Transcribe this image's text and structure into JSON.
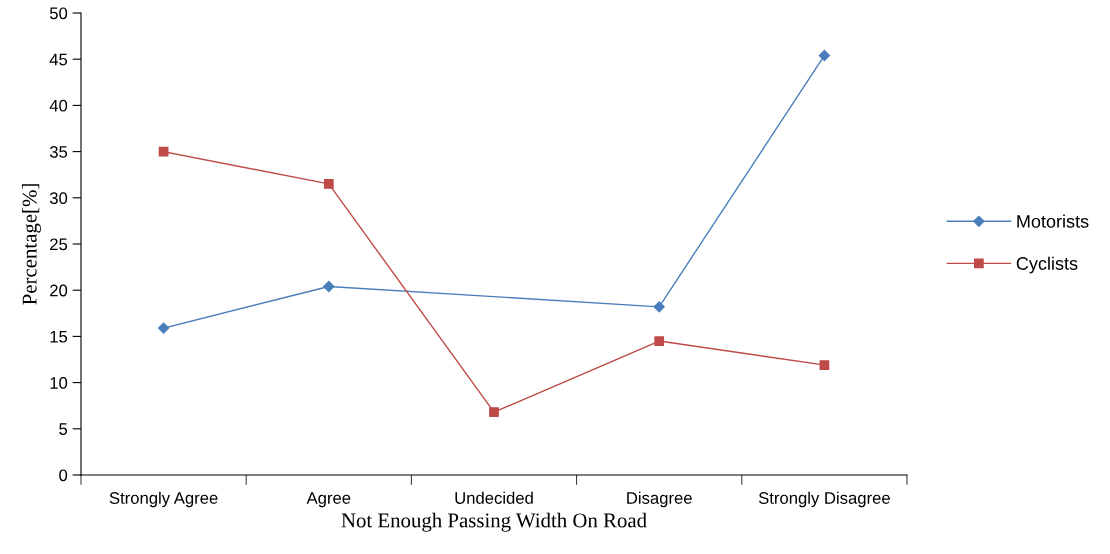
{
  "chart_data": {
    "type": "line",
    "xlabel": "Not Enough Passing Width On Road",
    "ylabel": "Percentage[%]",
    "categories": [
      "Strongly Agree",
      "Agree",
      "Undecided",
      "Disagree",
      "Strongly Disagree"
    ],
    "series": [
      {
        "name": "Motorists",
        "color": "#4a7ebb",
        "marker": "diamond",
        "values": [
          15.9,
          20.4,
          null,
          18.2,
          45.4
        ]
      },
      {
        "name": "Cyclists",
        "color": "#be4b48",
        "marker": "square",
        "values": [
          35.0,
          31.5,
          6.8,
          14.5,
          11.9
        ]
      }
    ],
    "ylim": [
      0,
      50
    ],
    "yticks": [
      0,
      5,
      10,
      15,
      20,
      25,
      30,
      35,
      40,
      45,
      50
    ],
    "grid": false,
    "legend": "right",
    "line_style": "solid"
  }
}
